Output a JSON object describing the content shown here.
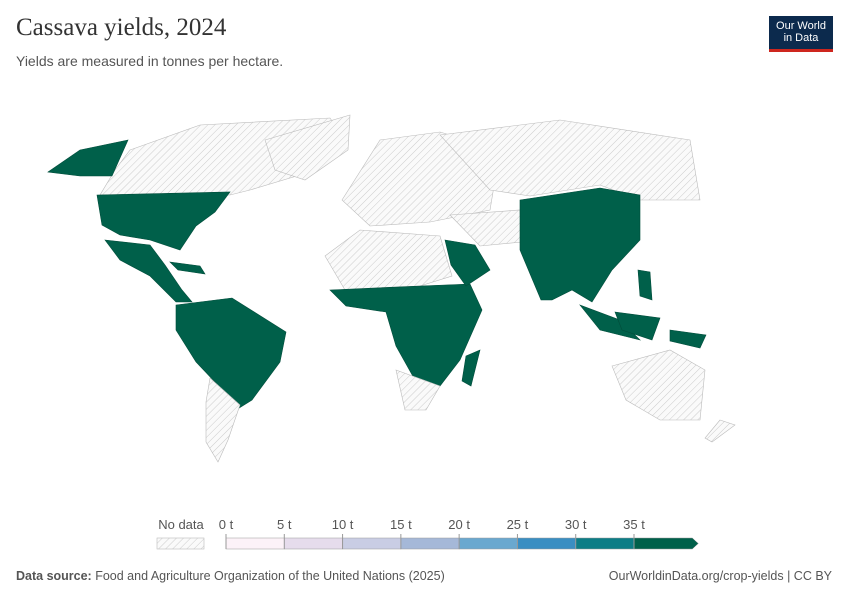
{
  "header": {
    "title": "Cassava yields, 2024",
    "subtitle": "Yields are measured in tonnes per hectare.",
    "logo": [
      "Our World",
      "in Data"
    ]
  },
  "legend": {
    "no_data": "No data",
    "ticks": [
      {
        "value": 0,
        "label": "0 t"
      },
      {
        "value": 5,
        "label": "5 t"
      },
      {
        "value": 10,
        "label": "10 t"
      },
      {
        "value": 15,
        "label": "15 t"
      },
      {
        "value": 20,
        "label": "20 t"
      },
      {
        "value": 25,
        "label": "25 t"
      },
      {
        "value": 30,
        "label": "30 t"
      },
      {
        "value": 35,
        "label": "35 t"
      }
    ],
    "colors": [
      "#fcf2f8",
      "#e6dcec",
      "#c9cde4",
      "#a5b8d8",
      "#6aa8cf",
      "#3a8ec2",
      "#0d7d86",
      "#00604a"
    ]
  },
  "footer": {
    "source_label": "Data source:",
    "source": "Food and Agriculture Organization of the United Nations (2025)",
    "url": "OurWorldinData.org/crop-yields | CC BY"
  }
}
